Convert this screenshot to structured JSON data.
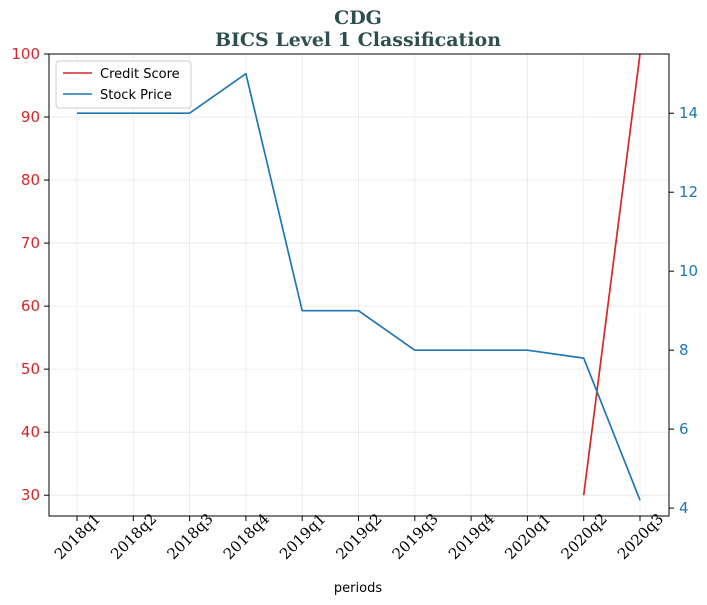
{
  "chart_data": {
    "type": "line",
    "title": "CDG",
    "subtitle": "BICS Level 1 Classification",
    "xlabel": "periods",
    "ylabel_left": "",
    "ylabel_right": "",
    "categories": [
      "2018q1",
      "2018q2",
      "2018q3",
      "2018q4",
      "2019q1",
      "2019q2",
      "2019q3",
      "2019q4",
      "2020q1",
      "2020q2",
      "2020q3"
    ],
    "ylim_left": [
      26.7,
      100
    ],
    "ylim_right": [
      3.8,
      15.5
    ],
    "yticks_left": [
      30,
      40,
      50,
      60,
      70,
      80,
      90,
      100
    ],
    "yticks_right": [
      4,
      6,
      8,
      10,
      12,
      14
    ],
    "grid": true,
    "legend_position": "top-left",
    "series": [
      {
        "name": "Credit Score",
        "axis": "left",
        "color": "#d62728",
        "values": [
          null,
          null,
          null,
          null,
          null,
          null,
          null,
          null,
          null,
          30,
          100
        ]
      },
      {
        "name": "Stock Price",
        "axis": "right",
        "color": "#1f77b4",
        "values": [
          14,
          14,
          14,
          15,
          9,
          9,
          8,
          8,
          8,
          7.8,
          4.2
        ]
      }
    ],
    "colors": {
      "left_axis": "#d62728",
      "right_axis": "#1f77b4",
      "title": "#2f4f4f"
    }
  }
}
